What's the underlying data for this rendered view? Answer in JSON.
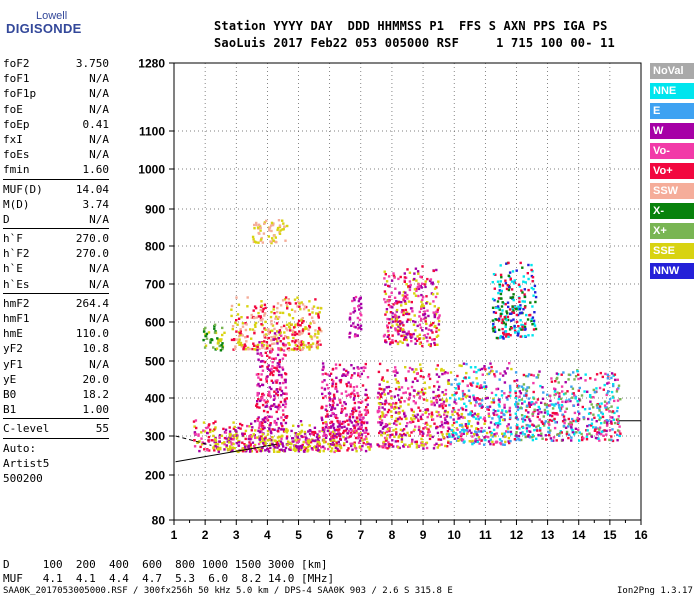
{
  "logo": {
    "top": "Lowell",
    "bottom": "DIGISONDE"
  },
  "header": {
    "row1": "Station YYYY DAY  DDD HHMMSS P1  FFS S AXN PPS IGA PS",
    "row2": "SaoLuis 2017 Feb22 053 005000 RSF     1 715 100 00- 11"
  },
  "params": {
    "group1": [
      {
        "k": "foF2",
        "v": "3.750"
      },
      {
        "k": "foF1",
        "v": "N/A"
      },
      {
        "k": "foF1p",
        "v": "N/A"
      },
      {
        "k": "foE",
        "v": "N/A"
      },
      {
        "k": "foEp",
        "v": "0.41"
      },
      {
        "k": "fxI",
        "v": "N/A"
      },
      {
        "k": "foEs",
        "v": "N/A"
      },
      {
        "k": "fmin",
        "v": "1.60"
      }
    ],
    "group2": [
      {
        "k": "MUF(D)",
        "v": "14.04"
      },
      {
        "k": "M(D)",
        "v": "3.74"
      },
      {
        "k": "D",
        "v": "N/A"
      }
    ],
    "group3": [
      {
        "k": "h`F",
        "v": "270.0"
      },
      {
        "k": "h`F2",
        "v": "270.0"
      },
      {
        "k": "h`E",
        "v": "N/A"
      },
      {
        "k": "h`Es",
        "v": "N/A"
      }
    ],
    "group4": [
      {
        "k": "hmF2",
        "v": "264.4"
      },
      {
        "k": "hmF1",
        "v": "N/A"
      },
      {
        "k": "hmE",
        "v": "110.0"
      },
      {
        "k": "yF2",
        "v": "10.8"
      },
      {
        "k": "yF1",
        "v": "N/A"
      },
      {
        "k": "yE",
        "v": "20.0"
      },
      {
        "k": "B0",
        "v": "18.2"
      },
      {
        "k": "B1",
        "v": "1.00"
      }
    ],
    "clevel": {
      "k": "C-level",
      "v": "55"
    },
    "auto": [
      "Auto:",
      "Artist5",
      "500200"
    ]
  },
  "legend": [
    {
      "label": "NoVal",
      "color": "#a9a9a9"
    },
    {
      "label": "NNE",
      "color": "#00e5ee"
    },
    {
      "label": "E",
      "color": "#3ea2f2"
    },
    {
      "label": "W",
      "color": "#a600a6"
    },
    {
      "label": "Vo-",
      "color": "#f23aa8"
    },
    {
      "label": "Vo+",
      "color": "#f2073f"
    },
    {
      "label": "SSW",
      "color": "#f5ad9a"
    },
    {
      "label": "X-",
      "color": "#08820c"
    },
    {
      "label": "X+",
      "color": "#79b553"
    },
    {
      "label": "SSE",
      "color": "#d8d311"
    },
    {
      "label": "NNW",
      "color": "#2420d8"
    }
  ],
  "dmuf": {
    "d_row": "D     100  200  400  600  800 1000 1500 3000 [km]",
    "muf_row": "MUF   4.1  4.1  4.4  4.7  5.3  6.0  8.2 14.0 [MHz]"
  },
  "footer": {
    "left": "SAA0K_2017053005000.RSF / 300fx256h 50 kHz 5.0 km / DPS-4 SAA0K 903 / 2.6 S 315.8 E",
    "right": "Ion2Png 1.3.17"
  },
  "chart_data": {
    "type": "scatter",
    "x_ticks": [
      1,
      2,
      3,
      4,
      5,
      6,
      7,
      8,
      9,
      10,
      11,
      12,
      13,
      14,
      15,
      16
    ],
    "y_ticks": [
      80,
      200,
      300,
      400,
      500,
      600,
      700,
      800,
      900,
      1000,
      1100,
      1280
    ],
    "xlim": [
      1,
      16
    ],
    "ylim": [
      80,
      1280
    ],
    "y_scale": "nonlinear",
    "grid": true,
    "grid_style": "dotted",
    "reference_lines": [
      {
        "desc": "trace",
        "x": [
          1.05,
          4.3
        ],
        "y": [
          234,
          279
        ]
      },
      {
        "desc": "dashed trace",
        "x": [
          1.05,
          2.2
        ],
        "y": [
          300,
          276
        ],
        "dash": true
      },
      {
        "desc": "horizontal marker",
        "x": [
          15.3,
          16
        ],
        "y": [
          340,
          340
        ]
      }
    ],
    "clusters": [
      {
        "x": [
          1.6,
          7.3
        ],
        "y": [
          262,
          345
        ],
        "colors": [
          "#f2073f",
          "#f23aa8",
          "#a600a6",
          "#d8d311"
        ]
      },
      {
        "x": [
          2.2,
          6.3
        ],
        "y": [
          262,
          320
        ],
        "colors": [
          "#d8d311",
          "#a600a6"
        ]
      },
      {
        "x": [
          1.9,
          2.6
        ],
        "y": [
          530,
          600
        ],
        "colors": [
          "#08820c",
          "#d8d311",
          "#79b553"
        ]
      },
      {
        "x": [
          2.8,
          5.7
        ],
        "y": [
          530,
          670
        ],
        "colors": [
          "#f5ad9a",
          "#d8d311",
          "#f2073f"
        ]
      },
      {
        "x": [
          3.5,
          4.6
        ],
        "y": [
          810,
          880
        ],
        "colors": [
          "#d8d311",
          "#f5ad9a"
        ]
      },
      {
        "x": [
          3.6,
          4.6
        ],
        "y": [
          320,
          580
        ],
        "colors": [
          "#a600a6",
          "#f23aa8",
          "#f2073f"
        ]
      },
      {
        "x": [
          5.7,
          7.2
        ],
        "y": [
          300,
          500
        ],
        "colors": [
          "#f23aa8",
          "#a600a6",
          "#f2073f"
        ]
      },
      {
        "x": [
          6.6,
          7.0
        ],
        "y": [
          560,
          680
        ],
        "colors": [
          "#f23aa8",
          "#a600a6"
        ]
      },
      {
        "x": [
          7.5,
          9.8
        ],
        "y": [
          270,
          500
        ],
        "colors": [
          "#a600a6",
          "#f23aa8",
          "#f2073f",
          "#d8d311"
        ]
      },
      {
        "x": [
          7.7,
          9.5
        ],
        "y": [
          540,
          750
        ],
        "colors": [
          "#a600a6",
          "#f23aa8",
          "#f2073f",
          "#d8d311"
        ]
      },
      {
        "x": [
          9.8,
          11.8
        ],
        "y": [
          280,
          500
        ],
        "colors": [
          "#f2073f",
          "#f23aa8",
          "#a600a6",
          "#3ea2f2",
          "#00e5ee",
          "#d8d311"
        ]
      },
      {
        "x": [
          11.9,
          15.3
        ],
        "y": [
          290,
          480
        ],
        "colors": [
          "#00e5ee",
          "#3ea2f2",
          "#f23aa8",
          "#a600a6",
          "#f2073f",
          "#79b553"
        ]
      },
      {
        "x": [
          11.2,
          12.6
        ],
        "y": [
          560,
          760
        ],
        "colors": [
          "#08820c",
          "#00e5ee",
          "#2420d8",
          "#f2073f"
        ]
      }
    ]
  }
}
